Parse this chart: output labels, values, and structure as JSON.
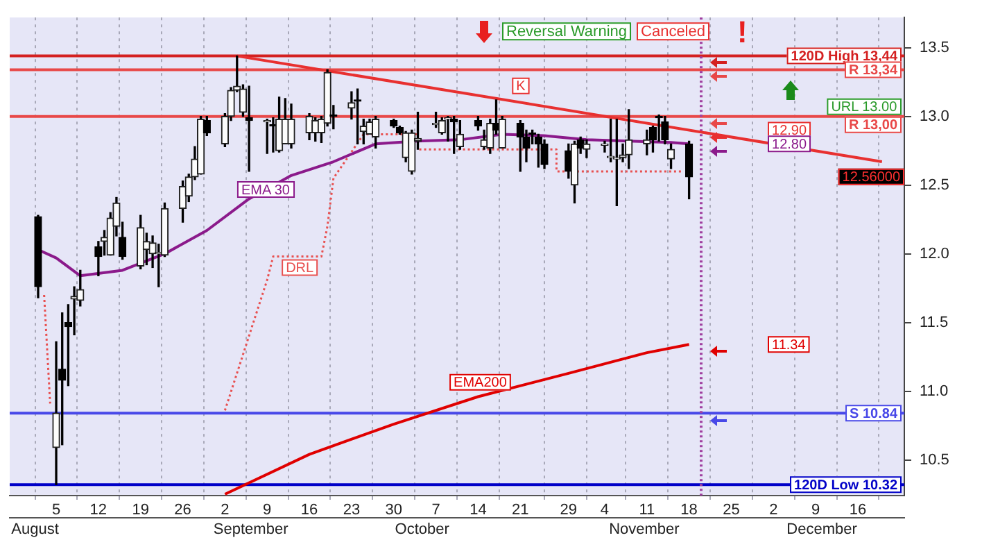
{
  "chart_data": {
    "type": "candlestick",
    "x": [
      "--08-02",
      "--08-05",
      "--08-06",
      "--08-07",
      "--08-08",
      "--08-09",
      "--08-12",
      "--08-13",
      "--08-14",
      "--08-15",
      "--08-16",
      "--08-19",
      "--08-20",
      "--08-21",
      "--08-22",
      "--08-23",
      "--08-26",
      "--08-27",
      "--08-28",
      "--08-29",
      "--08-30",
      "--09-02",
      "--09-03",
      "--09-04",
      "--09-05",
      "--09-06",
      "--09-09",
      "--09-10",
      "--09-11",
      "--09-12",
      "--09-13",
      "--09-16",
      "--09-17",
      "--09-18",
      "--09-19",
      "--09-20",
      "--09-23",
      "--09-24",
      "--09-25",
      "--09-26",
      "--09-27",
      "--09-30",
      "--10-01",
      "--10-02",
      "--10-03",
      "--10-04",
      "--10-07",
      "--10-08",
      "--10-09",
      "--10-10",
      "--10-11",
      "--10-14",
      "--10-15",
      "--10-16",
      "--10-17",
      "--10-18",
      "--10-21",
      "--10-22",
      "--10-23",
      "--10-24",
      "--10-25",
      "--10-29",
      "--10-30",
      "--10-31",
      "--11-01",
      "--11-04",
      "--11-05",
      "--11-06",
      "--11-07",
      "--11-08",
      "--11-11",
      "--11-12",
      "--11-13",
      "--11-14",
      "--11-15",
      "--11-18"
    ],
    "ohlc": [
      [
        12.27,
        12.28,
        11.68,
        11.76
      ],
      [
        10.59,
        11.36,
        10.32,
        10.84
      ],
      [
        11.16,
        11.57,
        10.61,
        11.08
      ],
      [
        11.5,
        11.63,
        11.04,
        11.47
      ],
      [
        11.67,
        11.76,
        11.41,
        11.69
      ],
      [
        11.66,
        11.88,
        11.62,
        11.74
      ],
      [
        12.05,
        12.09,
        11.84,
        11.98
      ],
      [
        12.09,
        12.17,
        11.99,
        12.12
      ],
      [
        11.99,
        12.3,
        11.99,
        12.26
      ],
      [
        12.2,
        12.41,
        12.13,
        12.37
      ],
      [
        12.12,
        12.23,
        11.96,
        11.98
      ],
      [
        11.91,
        12.28,
        11.89,
        12.19
      ],
      [
        12.03,
        12.15,
        11.92,
        12.09
      ],
      [
        12.0,
        12.13,
        11.9,
        12.08
      ],
      [
        12.0,
        12.07,
        11.76,
        12.01
      ],
      [
        11.99,
        12.37,
        11.98,
        12.33
      ],
      [
        12.33,
        12.53,
        12.23,
        12.49
      ],
      [
        12.42,
        12.58,
        12.38,
        12.56
      ],
      [
        12.56,
        12.78,
        12.54,
        12.69
      ],
      [
        12.58,
        13.0,
        12.58,
        12.98
      ],
      [
        12.97,
        13.0,
        12.86,
        12.88
      ],
      [
        12.8,
        13.02,
        12.78,
        13.0
      ],
      [
        13.0,
        13.21,
        12.97,
        13.19
      ],
      [
        13.19,
        13.44,
        13.18,
        13.22
      ],
      [
        13.03,
        13.23,
        13.0,
        13.2
      ],
      [
        12.99,
        13.22,
        12.6,
        12.97
      ],
      [
        12.96,
        12.98,
        12.73,
        12.97
      ],
      [
        12.94,
        12.99,
        12.74,
        12.93
      ],
      [
        12.75,
        13.14,
        12.74,
        12.98
      ],
      [
        12.8,
        13.13,
        12.8,
        12.98
      ],
      [
        12.8,
        13.09,
        12.77,
        12.98
      ],
      [
        12.88,
        13.02,
        12.83,
        13.0
      ],
      [
        12.88,
        12.99,
        12.82,
        12.97
      ],
      [
        12.88,
        13.0,
        12.81,
        12.98
      ],
      [
        12.95,
        13.34,
        12.93,
        13.32
      ],
      [
        13.01,
        13.08,
        12.91,
        13.0
      ],
      [
        13.06,
        13.18,
        12.98,
        13.1
      ],
      [
        13.12,
        13.2,
        12.8,
        13.11
      ],
      [
        12.89,
        12.98,
        12.8,
        12.93
      ],
      [
        12.87,
        12.98,
        12.87,
        12.96
      ],
      [
        12.85,
        13.0,
        12.77,
        12.98
      ],
      [
        12.97,
        12.98,
        12.92,
        12.93
      ],
      [
        12.92,
        12.93,
        12.87,
        12.88
      ],
      [
        12.7,
        12.89,
        12.67,
        12.88
      ],
      [
        12.6,
        12.9,
        12.58,
        12.88
      ],
      [
        12.82,
        13.03,
        12.76,
        12.84
      ],
      [
        12.94,
        13.03,
        12.92,
        12.95
      ],
      [
        12.88,
        12.99,
        12.87,
        12.97
      ],
      [
        12.98,
        13.0,
        12.82,
        12.99
      ],
      [
        12.98,
        13.0,
        12.73,
        12.96
      ],
      [
        12.78,
        12.97,
        12.76,
        12.87
      ],
      [
        12.97,
        13.0,
        12.9,
        12.93
      ],
      [
        12.78,
        12.9,
        12.76,
        12.83
      ],
      [
        12.77,
        12.98,
        12.73,
        12.95
      ],
      [
        12.95,
        13.12,
        12.87,
        12.9
      ],
      [
        12.77,
        13.0,
        12.77,
        12.98
      ],
      [
        12.95,
        12.97,
        12.6,
        12.85
      ],
      [
        12.85,
        12.9,
        12.67,
        12.77
      ],
      [
        12.88,
        12.9,
        12.8,
        12.87
      ],
      [
        12.85,
        12.87,
        12.63,
        12.8
      ],
      [
        12.8,
        12.83,
        12.62,
        12.65
      ],
      [
        12.75,
        12.8,
        12.55,
        12.6
      ],
      [
        12.5,
        12.82,
        12.37,
        12.8
      ],
      [
        12.83,
        12.85,
        12.73,
        12.77
      ],
      [
        12.76,
        12.83,
        12.7,
        12.8
      ],
      [
        12.79,
        12.82,
        12.74,
        12.8
      ],
      [
        12.7,
        12.98,
        12.67,
        12.71
      ],
      [
        12.69,
        12.98,
        12.35,
        12.7
      ],
      [
        12.7,
        12.8,
        12.67,
        12.72
      ],
      [
        12.72,
        13.05,
        12.62,
        12.83
      ],
      [
        12.8,
        12.9,
        12.72,
        12.83
      ],
      [
        12.92,
        12.93,
        12.74,
        12.83
      ],
      [
        13.0,
        13.01,
        12.82,
        12.99
      ],
      [
        12.96,
        13.0,
        12.8,
        12.83
      ],
      [
        12.69,
        12.8,
        12.62,
        12.76
      ],
      [
        12.8,
        12.82,
        12.4,
        12.56
      ]
    ],
    "series": [
      {
        "type": "line",
        "name": "EMA 30",
        "color": "#8b1a8b",
        "x": [
          "--08-02",
          "--08-05",
          "--08-09",
          "--08-16",
          "--08-23",
          "--08-30",
          "--09-06",
          "--09-13",
          "--09-20",
          "--09-27",
          "--10-04",
          "--10-11",
          "--10-18",
          "--10-25",
          "--11-01",
          "--11-08",
          "--11-15",
          "--11-18"
        ],
        "values": [
          12.03,
          11.97,
          11.84,
          11.88,
          12.0,
          12.17,
          12.4,
          12.57,
          12.67,
          12.8,
          12.82,
          12.83,
          12.87,
          12.86,
          12.83,
          12.82,
          12.81,
          12.8
        ]
      },
      {
        "type": "line",
        "name": "EMA200",
        "color": "#e00000",
        "x": [
          "--09-02",
          "--09-16",
          "--09-30",
          "--10-14",
          "--10-29",
          "--11-11",
          "--11-18"
        ],
        "values": [
          10.25,
          10.54,
          10.76,
          10.96,
          11.13,
          11.28,
          11.34
        ]
      },
      {
        "type": "line",
        "name": "DRL",
        "color": "#e85050",
        "line_style": "dotted",
        "x": [
          "--08-03",
          "--08-04",
          "--08-20",
          "--09-02",
          "--09-09",
          "--09-10",
          "--09-18",
          "--09-19",
          "--09-20",
          "--09-25",
          "--10-04",
          "--10-04",
          "--10-27",
          "--10-27",
          "--11-17"
        ],
        "values": [
          11.7,
          10.91,
          null,
          10.86,
          11.81,
          11.98,
          11.98,
          12.2,
          12.55,
          12.87,
          12.87,
          12.76,
          12.76,
          12.6,
          12.6
        ]
      },
      {
        "type": "line",
        "name": "K",
        "color": "#e83030",
        "x": [
          "--09-04",
          "--12-20"
        ],
        "values": [
          13.44,
          12.67
        ]
      }
    ],
    "xlim": [
      "--08-01",
      "--12-20"
    ],
    "xticks": [
      {
        "value": "--08-05",
        "label": "5"
      },
      {
        "value": "--08-12",
        "label": "12"
      },
      {
        "value": "--08-19",
        "label": "19"
      },
      {
        "value": "--08-26",
        "label": "26"
      },
      {
        "value": "--09-02",
        "label": "2"
      },
      {
        "value": "--09-09",
        "label": "9"
      },
      {
        "value": "--09-16",
        "label": "16"
      },
      {
        "value": "--09-23",
        "label": "23"
      },
      {
        "value": "--09-30",
        "label": "30"
      },
      {
        "value": "--10-07",
        "label": "7"
      },
      {
        "value": "--10-14",
        "label": "14"
      },
      {
        "value": "--10-21",
        "label": "21"
      },
      {
        "value": "--10-29",
        "label": "29"
      },
      {
        "value": "--11-04",
        "label": "4"
      },
      {
        "value": "--11-11",
        "label": "11"
      },
      {
        "value": "--11-18",
        "label": "18"
      },
      {
        "value": "--11-25",
        "label": "25"
      },
      {
        "value": "--12-02",
        "label": "2"
      },
      {
        "value": "--12-09",
        "label": "9"
      },
      {
        "value": "--12-16",
        "label": "16"
      }
    ],
    "x2lim": [
      "--08-01",
      "--12-20"
    ],
    "x2ticks": [
      {
        "value": "--08-05",
        "label": "August"
      },
      {
        "value": "--09-08",
        "label": "September"
      },
      {
        "value": "--10-05",
        "label": "October"
      },
      {
        "value": "--11-09",
        "label": "November"
      },
      {
        "value": "--12-07",
        "label": "December"
      }
    ],
    "ylim": [
      10.24,
      13.72
    ],
    "yticks": [
      10.5,
      {
        "value": 11,
        "label": "11.0"
      },
      11.5,
      {
        "value": 12,
        "label": "12.0"
      },
      12.5,
      {
        "value": 13,
        "label": "13.0"
      },
      13.5
    ],
    "grid": "x",
    "ref_lines": [
      {
        "axis": "y",
        "value": 13.44,
        "label": "120D High 13,44",
        "color": "#d42020"
      },
      {
        "axis": "y",
        "value": 13.34,
        "label": "R 13,34",
        "color": "#e84848"
      },
      {
        "axis": "y",
        "value": 13.0,
        "label": "R 13,00",
        "color": "#e84848"
      },
      {
        "axis": "y",
        "value": 10.84,
        "label": "S 10.84",
        "color": "#4848e8"
      },
      {
        "axis": "y",
        "value": 10.32,
        "label": "120D Low 10.32",
        "color": "#0000c8"
      },
      {
        "axis": "x",
        "value": "--11-20",
        "color": "#a040a0",
        "line_style": "dotted"
      }
    ],
    "annotations": [
      "Reversal Warning",
      "Canceled",
      "!",
      "URL 13.00",
      "12.90",
      "12.80",
      "11.34",
      "12.56000"
    ]
  }
}
